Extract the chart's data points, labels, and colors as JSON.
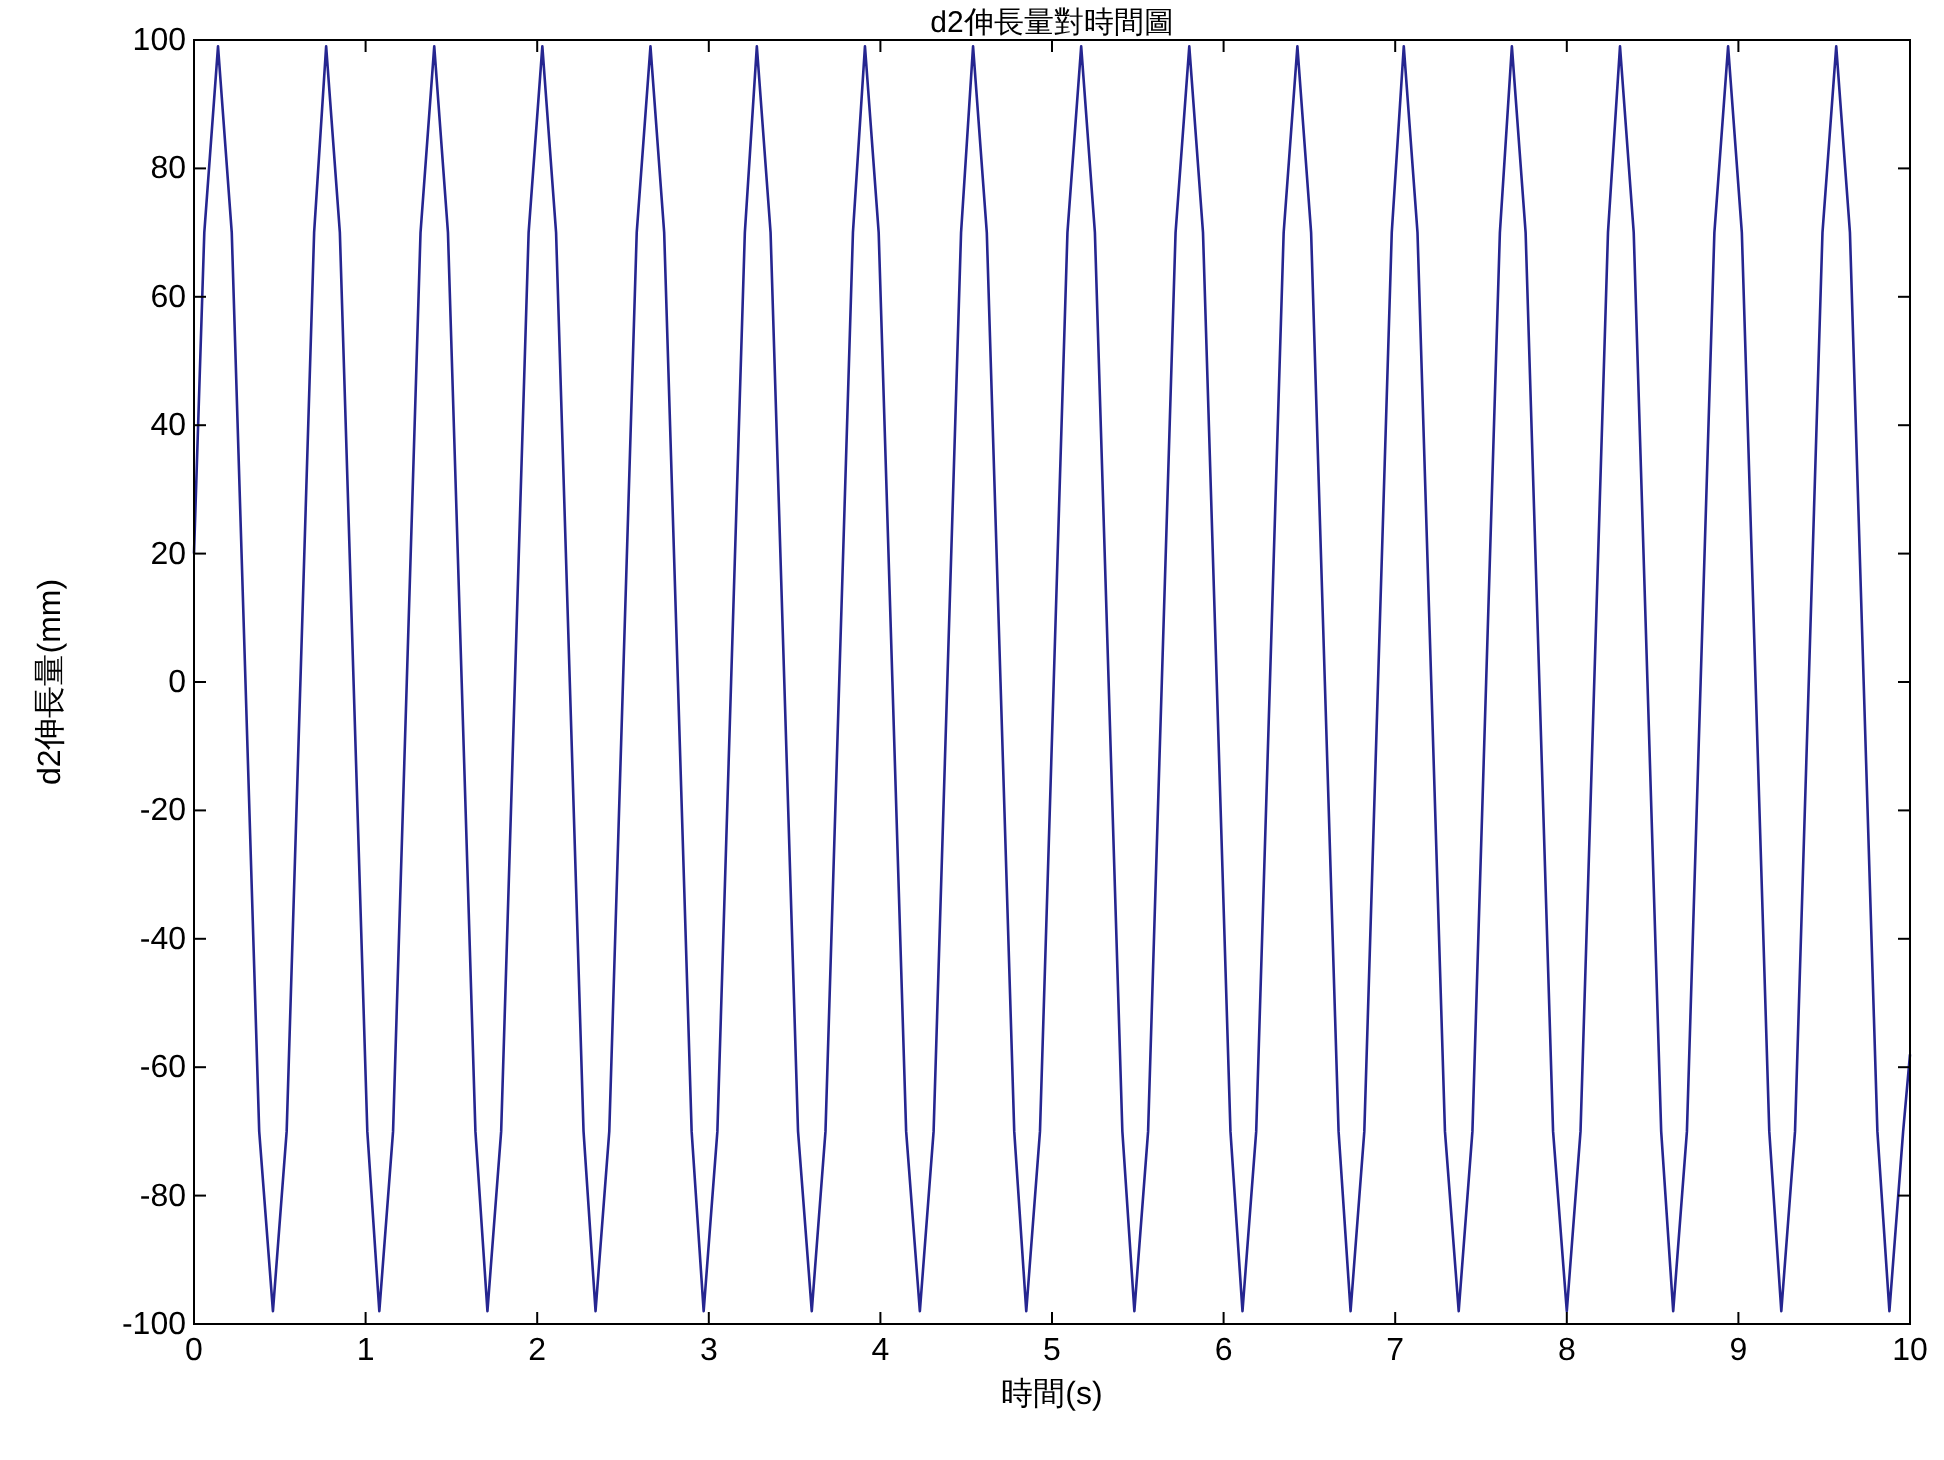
{
  "chart_data": {
    "type": "line",
    "title": "d2伸長量對時間圖",
    "xlabel": "時間(s)",
    "ylabel": "d2伸長量(mm)",
    "xlim": [
      0,
      10
    ],
    "ylim": [
      -100,
      100
    ],
    "xticks": [
      0,
      1,
      2,
      3,
      4,
      5,
      6,
      7,
      8,
      9,
      10
    ],
    "yticks": [
      -100,
      -80,
      -60,
      -40,
      -20,
      0,
      20,
      40,
      60,
      80,
      100
    ],
    "x": [
      0,
      0.06,
      0.14,
      0.22,
      0.3,
      0.38,
      0.46,
      0.54,
      0.62,
      0.7,
      0.77,
      0.85,
      0.93,
      1.01,
      1.08,
      1.16,
      1.24,
      1.32,
      1.4,
      1.48,
      1.56,
      1.64,
      1.71,
      1.79,
      1.87,
      1.95,
      2.03,
      2.11,
      2.19,
      2.27,
      2.34,
      2.42,
      2.5,
      2.58,
      2.66,
      2.74,
      2.82,
      2.9,
      2.97,
      3.05,
      3.13,
      3.21,
      3.28,
      3.36,
      3.44,
      3.52,
      3.6,
      3.68,
      3.76,
      3.84,
      3.91,
      3.99,
      4.07,
      4.15,
      4.23,
      4.31,
      4.39,
      4.47,
      4.54,
      4.62,
      4.7,
      4.78,
      4.85,
      4.93,
      5.01,
      5.09,
      5.17,
      5.25,
      5.33,
      5.41,
      5.48,
      5.56,
      5.64,
      5.72,
      5.8,
      5.88,
      5.96,
      6.04,
      6.11,
      6.19,
      6.27,
      6.35,
      6.43,
      6.51,
      6.59,
      6.67,
      6.74,
      6.82,
      6.9,
      6.98,
      7.05,
      7.13,
      7.21,
      7.29,
      7.37,
      7.45,
      7.53,
      7.61,
      7.68,
      7.76,
      7.84,
      7.92,
      8.0,
      8.08,
      8.16,
      8.24,
      8.31,
      8.39,
      8.47,
      8.55,
      8.62,
      8.7,
      8.78,
      8.86,
      8.94,
      9.02,
      9.1,
      9.18,
      9.25,
      9.33,
      9.41,
      9.49,
      9.57,
      9.65,
      9.73,
      9.81,
      9.88,
      9.96,
      10
    ],
    "series": [
      {
        "color": "#262690",
        "values": [
          20,
          70,
          99,
          70,
          0,
          -70,
          -98,
          -70,
          0,
          70,
          99,
          70,
          0,
          -70,
          -98,
          -70,
          0,
          70,
          99,
          70,
          0,
          -70,
          -98,
          -70,
          0,
          70,
          99,
          70,
          0,
          -70,
          -98,
          -70,
          0,
          70,
          99,
          70,
          0,
          -70,
          -98,
          -70,
          0,
          70,
          99,
          70,
          0,
          -70,
          -98,
          -70,
          0,
          70,
          99,
          70,
          0,
          -70,
          -98,
          -70,
          0,
          70,
          99,
          70,
          0,
          -70,
          -98,
          -70,
          0,
          70,
          99,
          70,
          0,
          -70,
          -98,
          -70,
          0,
          70,
          99,
          70,
          0,
          -70,
          -98,
          -70,
          0,
          70,
          99,
          70,
          0,
          -70,
          -98,
          -70,
          0,
          70,
          99,
          70,
          0,
          -70,
          -98,
          -70,
          0,
          70,
          99,
          70,
          0,
          -70,
          -98,
          -70,
          0,
          70,
          99,
          70,
          0,
          -70,
          -98,
          -70,
          0,
          70,
          99,
          70,
          0,
          -70,
          -98,
          -70,
          0,
          70,
          99,
          70,
          0,
          -70,
          -98,
          -70,
          -58
        ]
      }
    ]
  }
}
